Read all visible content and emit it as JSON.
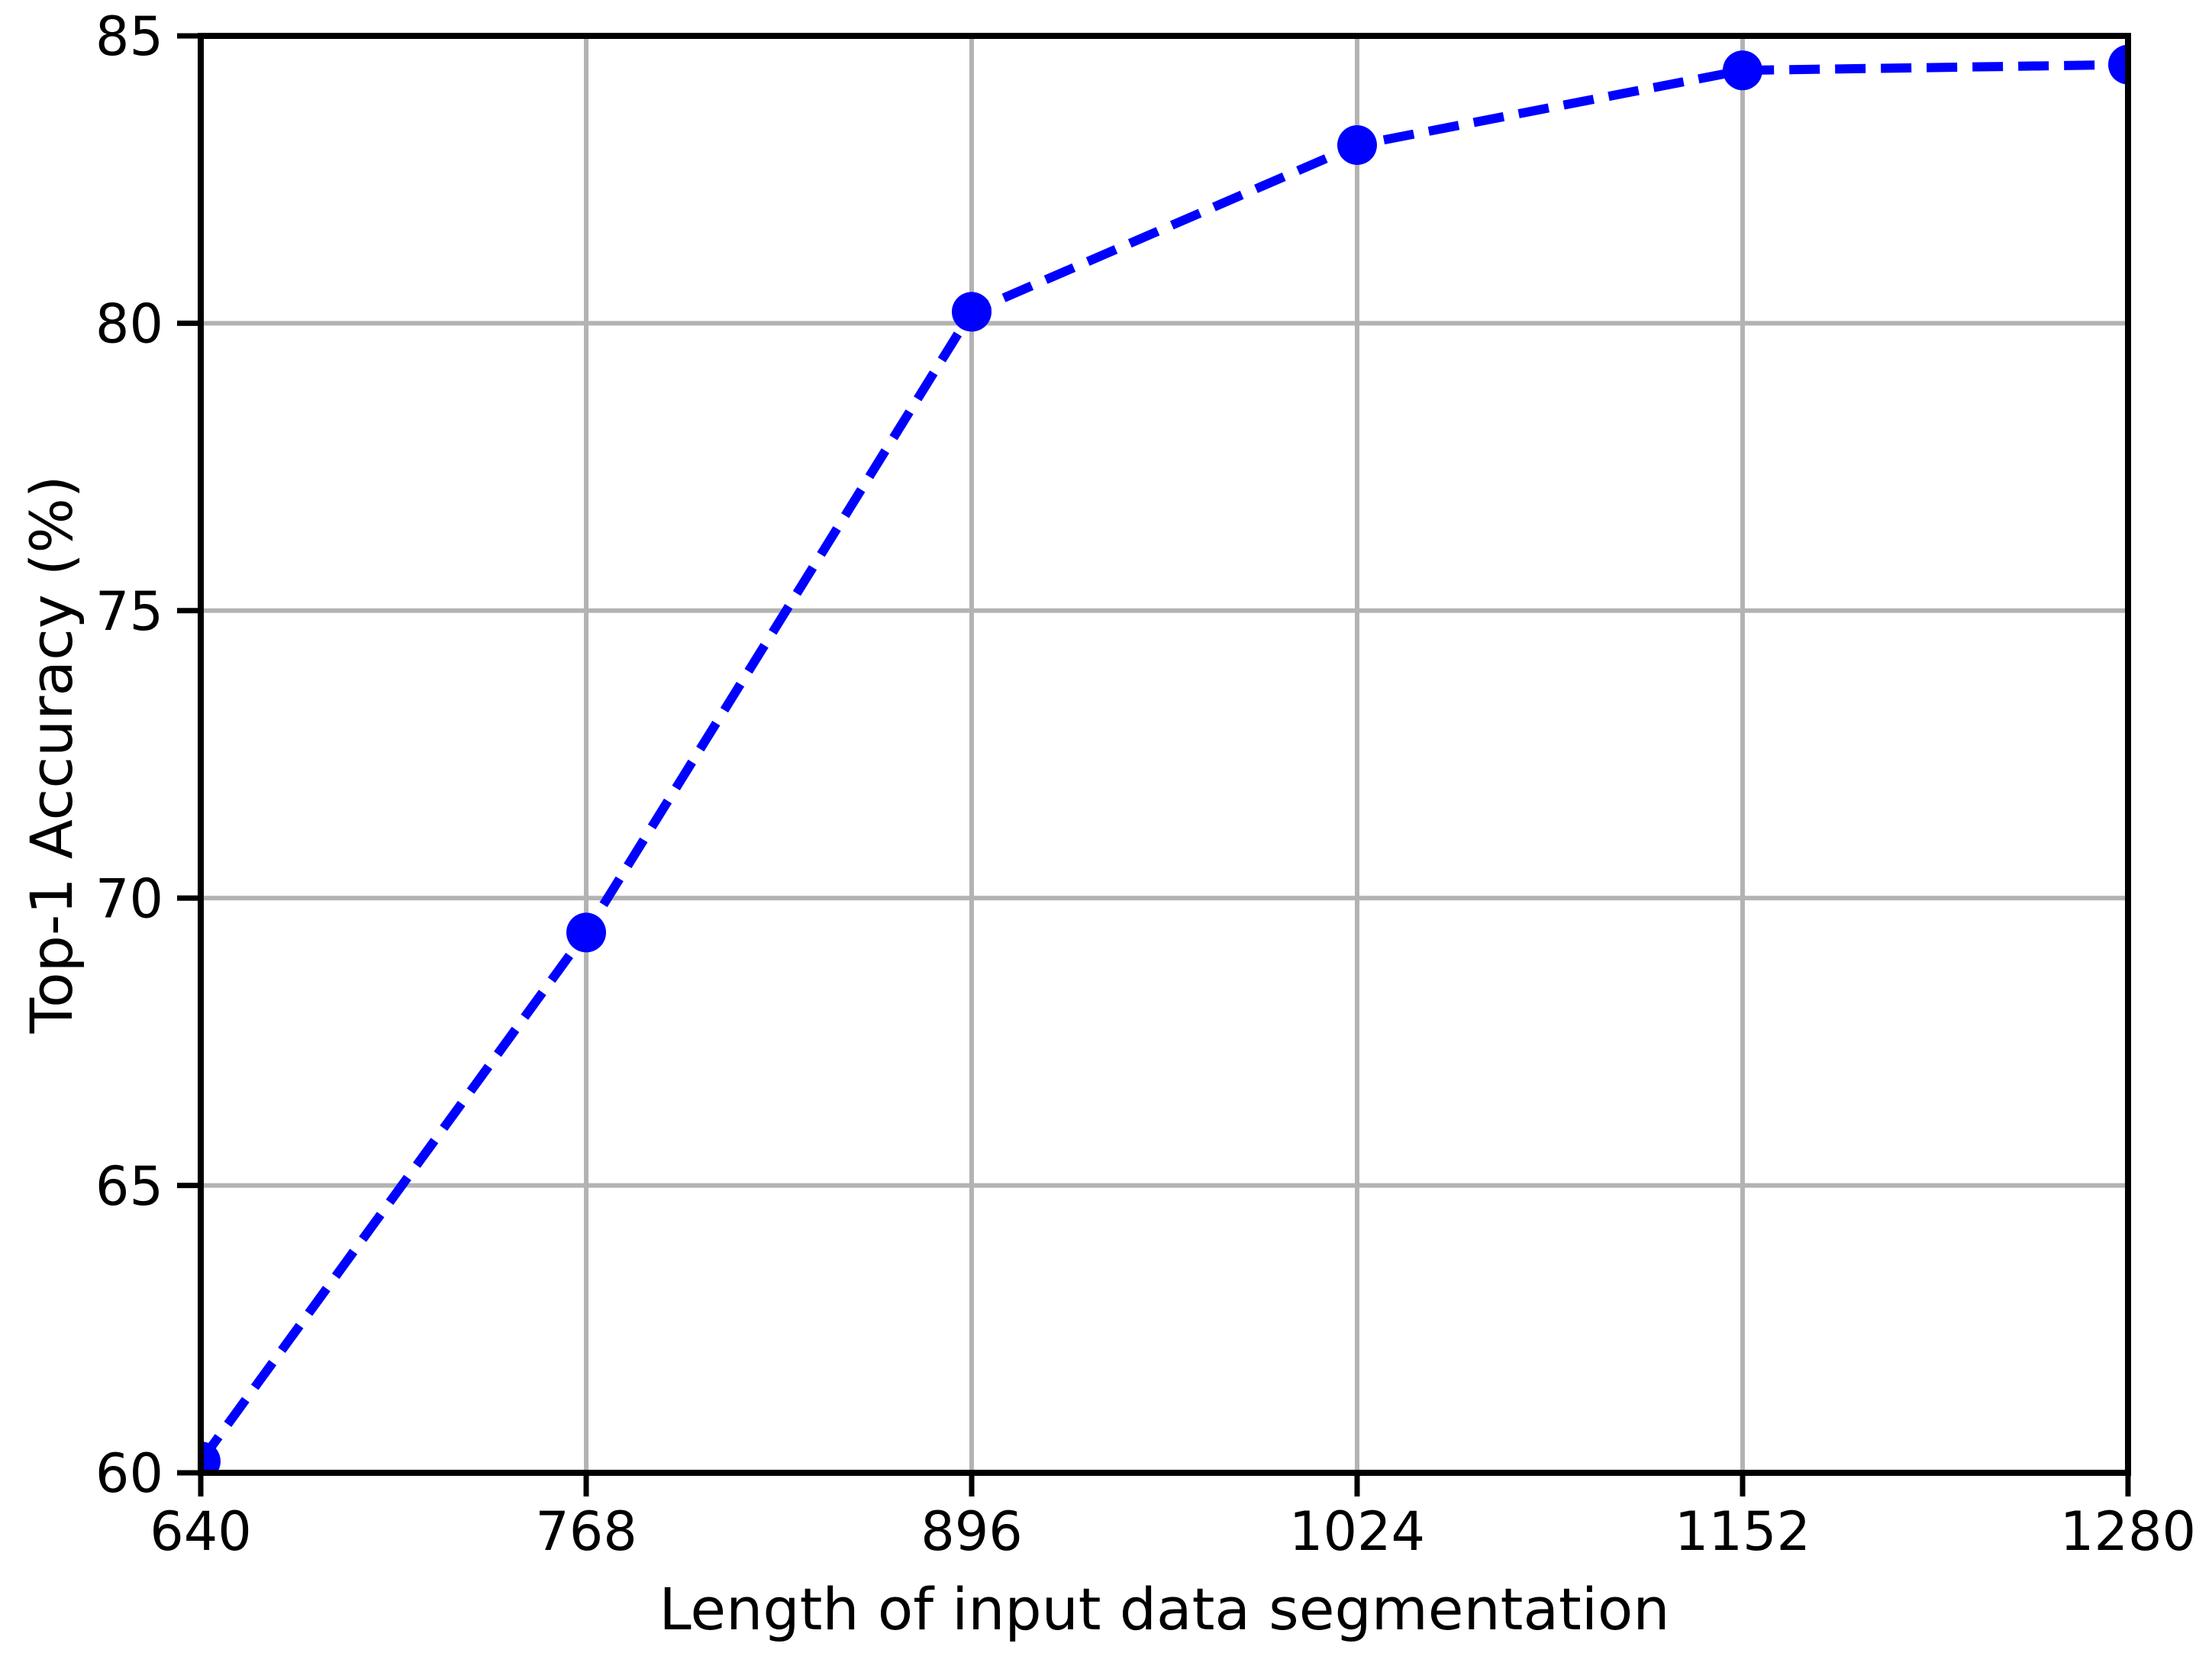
{
  "figure": {
    "background_color": "#FFFFFF"
  },
  "chart_data": {
    "type": "line",
    "x": [
      640,
      768,
      896,
      1024,
      1152,
      1280
    ],
    "y": [
      60.2,
      69.4,
      80.2,
      83.1,
      84.4,
      84.5
    ],
    "title": "",
    "xlabel": "Length of input data segmentation",
    "ylabel": "Top-1 Accuracy (%)",
    "xlim": [
      640,
      1280
    ],
    "ylim": [
      60,
      85
    ],
    "xticks": [
      "640",
      "768",
      "896",
      "1024",
      "1152",
      "1280"
    ],
    "xtick_values": [
      640,
      768,
      896,
      1024,
      1152,
      1280
    ],
    "yticks": [
      "60",
      "65",
      "70",
      "75",
      "80",
      "85"
    ],
    "ytick_values": [
      60,
      65,
      70,
      75,
      80,
      85
    ],
    "grid": "on",
    "legend": "none",
    "line_style": "dashed",
    "marker": "circle",
    "line_color": "#0000FF",
    "marker_color": "#0000FF",
    "grid_color": "#B3B3B3",
    "axis_color": "#000000",
    "tick_label_color": "#000000"
  }
}
